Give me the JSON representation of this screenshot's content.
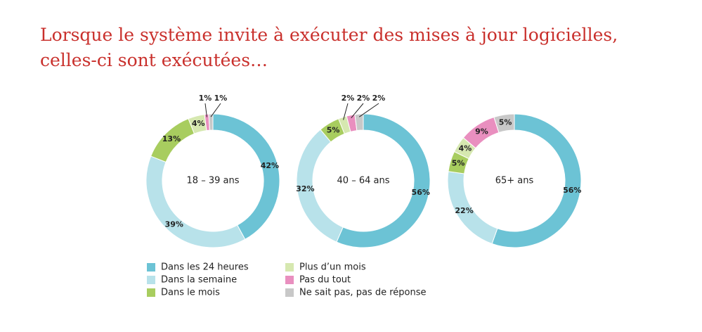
{
  "title": [
    "Lorsque le système invite à exécuter des mises à jour logicielles,",
    "celles-ci sont exécutées…"
  ],
  "legend": {
    "categories": [
      "Dans les 24 heures",
      "Dans la semaine",
      "Dans le mois",
      "Plus d’un mois",
      "Pas du tout",
      "Ne sait pas, pas de réponse"
    ],
    "colors": [
      "#6cc3d5",
      "#b8e2ea",
      "#a8cd5f",
      "#d6e8b0",
      "#e98fbf",
      "#c8c8c8"
    ]
  },
  "chart_data": [
    {
      "type": "donut",
      "center_label": "18 – 39 ans",
      "values": [
        42,
        39,
        13,
        4,
        1,
        1
      ],
      "value_labels": [
        "42%",
        "39%",
        "13%",
        "4%",
        "1%",
        "1%"
      ]
    },
    {
      "type": "donut",
      "center_label": "40 – 64 ans",
      "values": [
        56,
        32,
        5,
        2,
        2,
        2
      ],
      "value_labels": [
        "56%",
        "32%",
        "5%",
        "2%",
        "2%",
        "2%"
      ]
    },
    {
      "type": "donut",
      "center_label": "65+ ans",
      "values": [
        56,
        22,
        5,
        4,
        9,
        5
      ],
      "value_labels": [
        "56%",
        "22%",
        "5%",
        "4%",
        "9%",
        "5%"
      ]
    }
  ]
}
